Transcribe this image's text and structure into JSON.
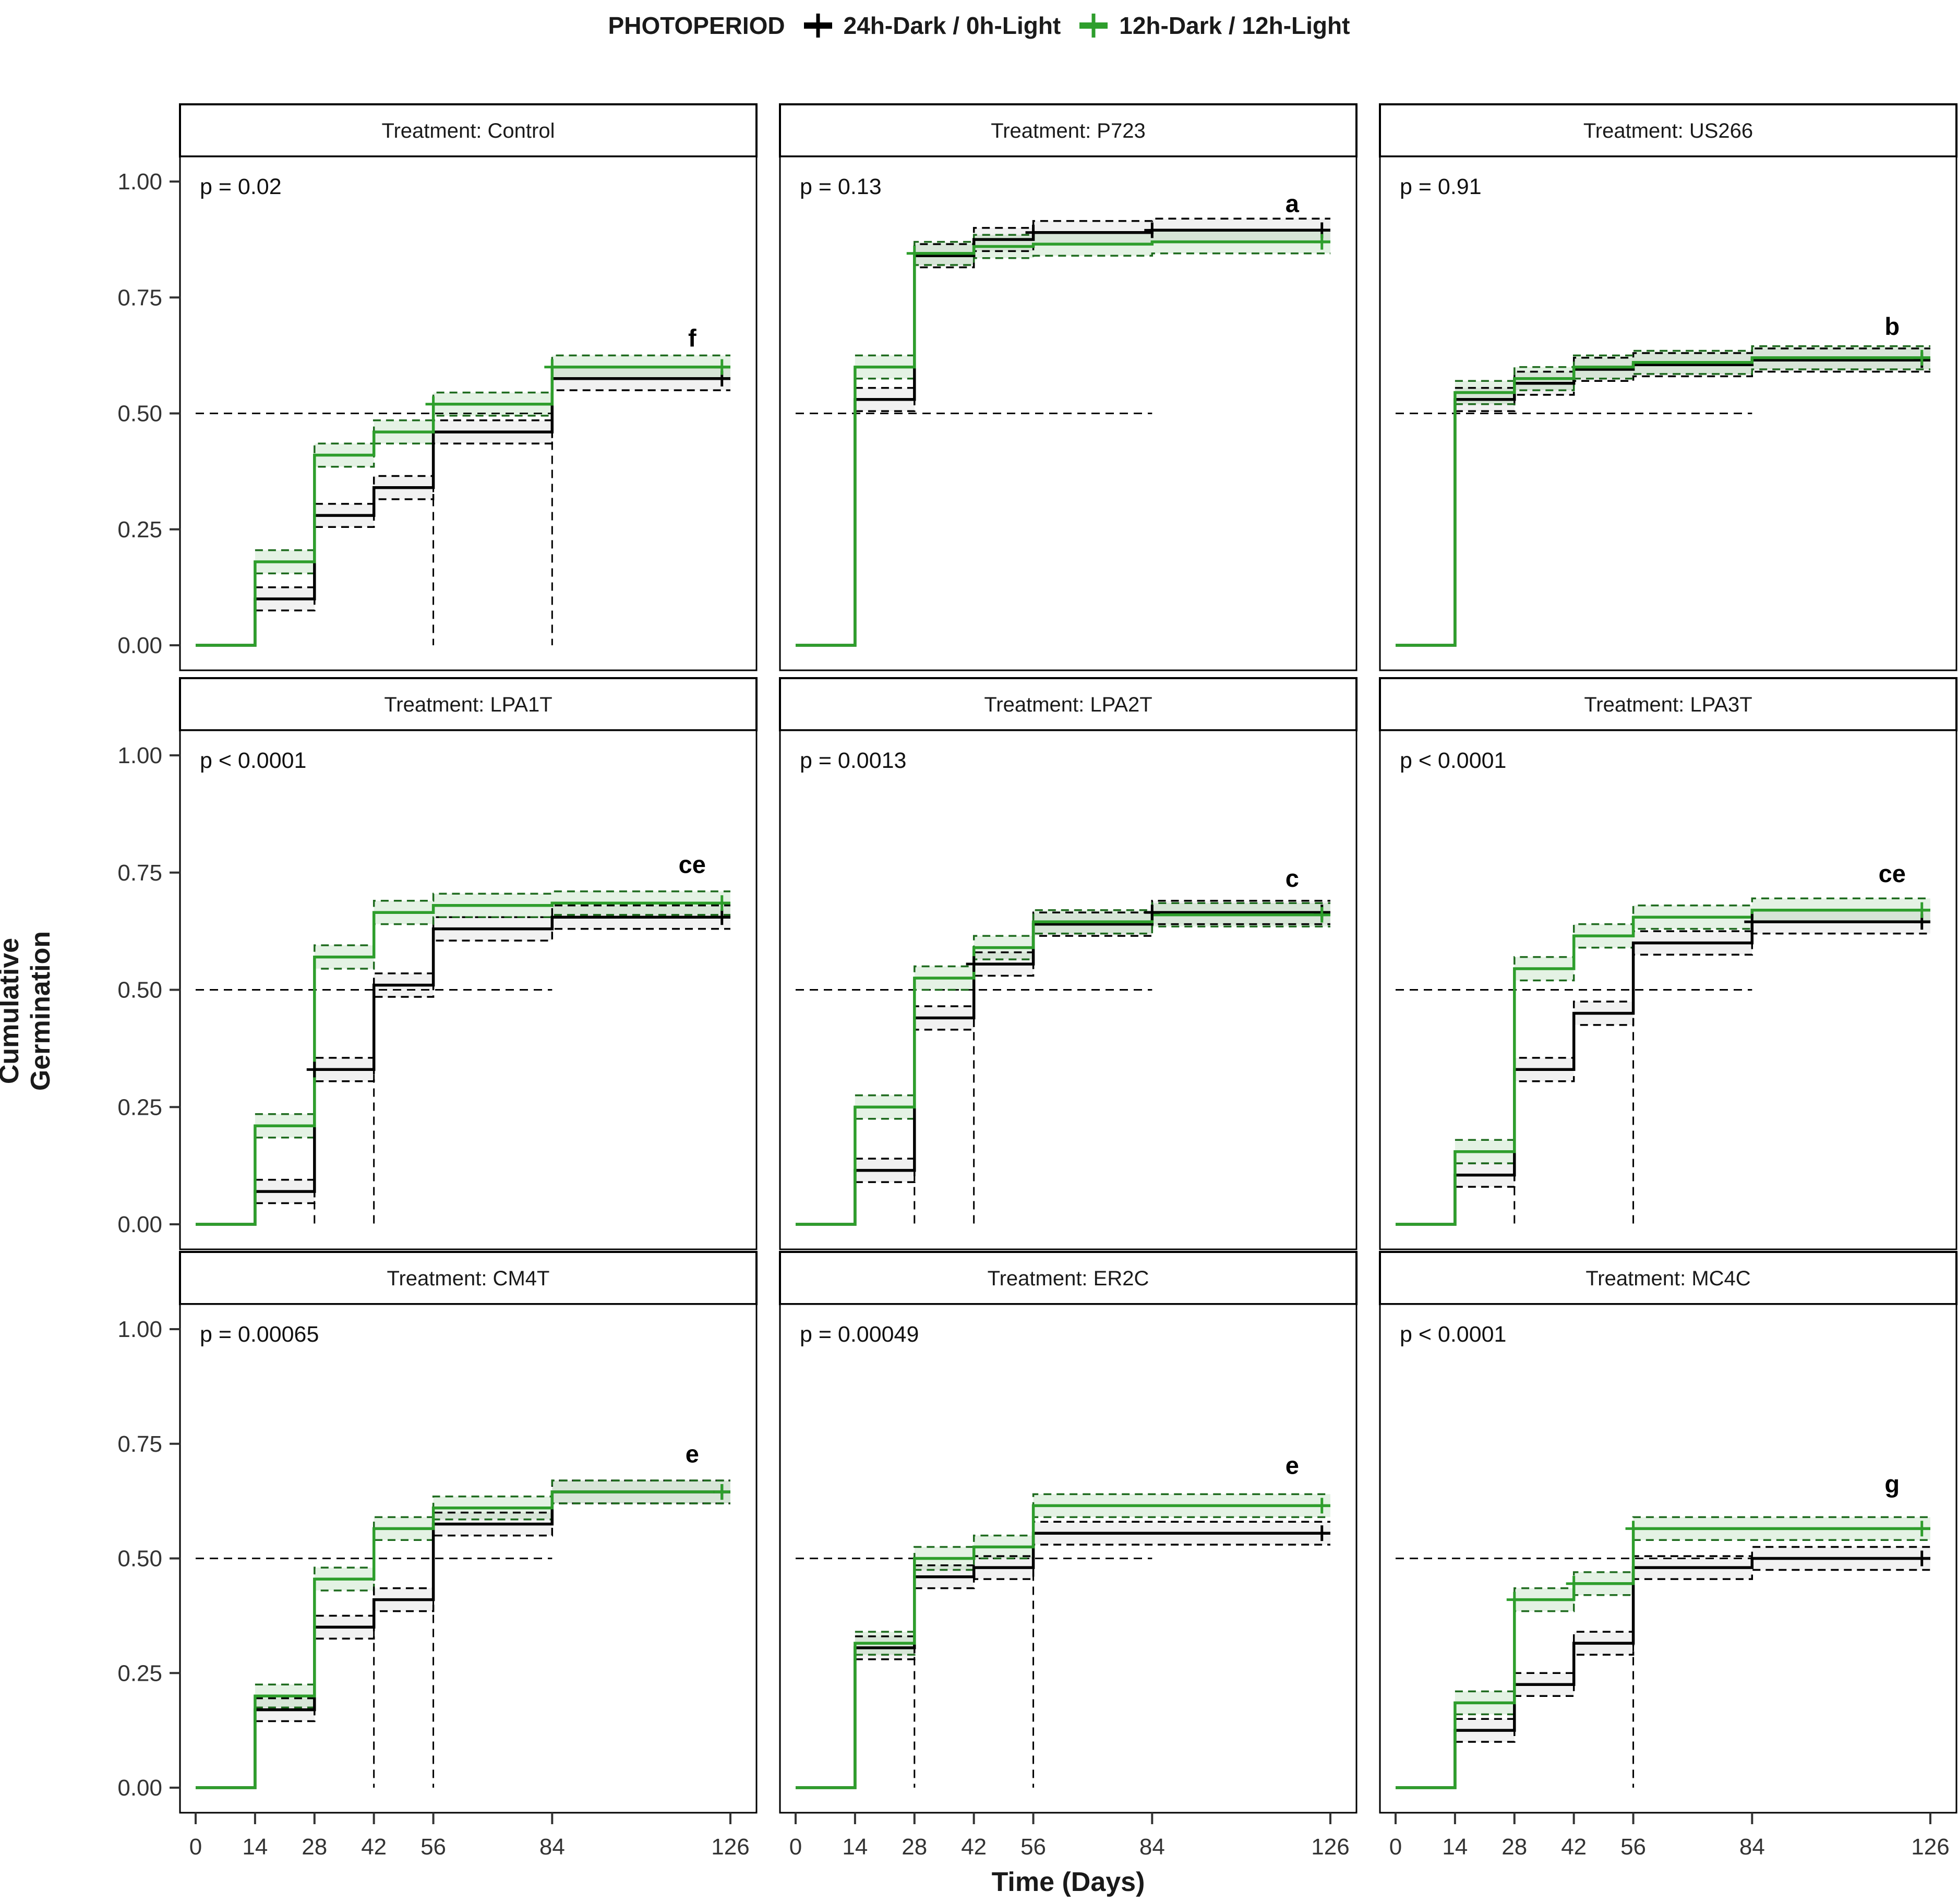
{
  "legend": {
    "title": "PHOTOPERIOD",
    "items": [
      {
        "label": "24h-Dark / 0h-Light",
        "color": "#000000"
      },
      {
        "label": "12h-Dark / 12h-Light",
        "color": "#2E9E2C"
      }
    ]
  },
  "axes": {
    "x_title": "Time (Days)",
    "y_title": "Cumulative Germination",
    "x_ticks": [
      0,
      14,
      28,
      42,
      56,
      84,
      126
    ],
    "y_tick_labels": [
      "1.00",
      "0.75",
      "0.50",
      "0.25",
      "0.00"
    ],
    "y_tick_values": [
      1.0,
      0.75,
      0.5,
      0.25,
      0.0
    ]
  },
  "chart_data": {
    "type": "line",
    "subtype": "kaplan-meier-cumulative-step",
    "title": "",
    "xlabel": "Time (Days)",
    "ylabel": "Cumulative Germination",
    "x_range": [
      0,
      126
    ],
    "y_range": [
      0,
      1
    ],
    "grid": false,
    "legend_position": "top",
    "step_times": [
      14,
      28,
      42,
      56,
      84
    ],
    "end_time": 126,
    "median_value": 0.5,
    "median_h_extent": 84,
    "ci_offset": 0.025,
    "series_names": [
      "24h-Dark / 0h-Light",
      "12h-Dark / 12h-Light"
    ],
    "colors": {
      "black": "#000000",
      "green": "#2E9E2C",
      "green_ci": "#1E6B1E"
    },
    "panels": [
      {
        "strip_label": "Treatment: Control",
        "p_label": "p = 0.02",
        "letter": "f",
        "letter_y": 0.66,
        "black": {
          "values": [
            0.1,
            0.28,
            0.34,
            0.46,
            0.575
          ],
          "median": 84,
          "censors": [
            [
              124,
              0.575
            ]
          ]
        },
        "green": {
          "values": [
            0.18,
            0.41,
            0.46,
            0.52,
            0.6
          ],
          "median": 56,
          "censors": [
            [
              56,
              0.52
            ],
            [
              84,
              0.6
            ],
            [
              124,
              0.6
            ]
          ]
        }
      },
      {
        "strip_label": "Treatment: P723",
        "p_label": "p = 0.13",
        "letter": "a",
        "letter_y": 0.95,
        "black": {
          "values": [
            0.53,
            0.84,
            0.875,
            0.89,
            0.895
          ],
          "median": 14,
          "censors": [
            [
              56,
              0.89
            ],
            [
              84,
              0.895
            ],
            [
              124,
              0.895
            ]
          ]
        },
        "green": {
          "values": [
            0.6,
            0.845,
            0.86,
            0.865,
            0.87
          ],
          "median": 14,
          "censors": [
            [
              28,
              0.845
            ],
            [
              124,
              0.87
            ]
          ]
        }
      },
      {
        "strip_label": "Treatment: US266",
        "p_label": "p = 0.91",
        "letter": "b",
        "letter_y": 0.685,
        "black": {
          "values": [
            0.53,
            0.565,
            0.595,
            0.605,
            0.615
          ],
          "median": 14,
          "censors": [
            [
              124,
              0.615
            ]
          ]
        },
        "green": {
          "values": [
            0.545,
            0.575,
            0.6,
            0.61,
            0.62
          ],
          "median": 14,
          "censors": [
            [
              124,
              0.62
            ]
          ]
        }
      },
      {
        "strip_label": "Treatment: LPA1T",
        "p_label": "p < 0.0001",
        "letter": "ce",
        "letter_y": 0.765,
        "black": {
          "values": [
            0.07,
            0.33,
            0.51,
            0.63,
            0.655
          ],
          "median": 42,
          "censors": [
            [
              28,
              0.33
            ],
            [
              124,
              0.655
            ]
          ]
        },
        "green": {
          "values": [
            0.21,
            0.57,
            0.665,
            0.68,
            0.685
          ],
          "median": 28,
          "censors": [
            [
              124,
              0.685
            ]
          ]
        }
      },
      {
        "strip_label": "Treatment: LPA2T",
        "p_label": "p = 0.0013",
        "letter": "c",
        "letter_y": 0.735,
        "black": {
          "values": [
            0.115,
            0.44,
            0.555,
            0.64,
            0.665
          ],
          "median": 42,
          "censors": [
            [
              42,
              0.555
            ],
            [
              84,
              0.665
            ],
            [
              124,
              0.665
            ]
          ]
        },
        "green": {
          "values": [
            0.25,
            0.525,
            0.59,
            0.645,
            0.66
          ],
          "median": 28,
          "censors": [
            [
              124,
              0.66
            ]
          ]
        }
      },
      {
        "strip_label": "Treatment: LPA3T",
        "p_label": "p < 0.0001",
        "letter": "ce",
        "letter_y": 0.745,
        "black": {
          "values": [
            0.105,
            0.33,
            0.45,
            0.6,
            0.645
          ],
          "median": 56,
          "censors": [
            [
              84,
              0.645
            ],
            [
              124,
              0.645
            ]
          ]
        },
        "green": {
          "values": [
            0.155,
            0.545,
            0.615,
            0.655,
            0.67
          ],
          "median": 28,
          "censors": [
            [
              124,
              0.67
            ]
          ]
        }
      },
      {
        "strip_label": "Treatment: CM4T",
        "p_label": "p = 0.00065",
        "letter": "e",
        "letter_y": 0.725,
        "black": {
          "values": [
            0.17,
            0.35,
            0.41,
            0.575,
            0.645
          ],
          "median": 56,
          "censors": [
            [
              124,
              0.645
            ]
          ]
        },
        "green": {
          "values": [
            0.2,
            0.455,
            0.565,
            0.61,
            0.645
          ],
          "median": 42,
          "censors": [
            [
              124,
              0.645
            ]
          ]
        }
      },
      {
        "strip_label": "Treatment: ER2C",
        "p_label": "p = 0.00049",
        "letter": "e",
        "letter_y": 0.7,
        "black": {
          "values": [
            0.305,
            0.46,
            0.48,
            0.555,
            0.555
          ],
          "median": 56,
          "censors": [
            [
              124,
              0.555
            ]
          ]
        },
        "green": {
          "values": [
            0.315,
            0.5,
            0.525,
            0.615,
            0.615
          ],
          "median": 28,
          "censors": [
            [
              124,
              0.615
            ]
          ]
        }
      },
      {
        "strip_label": "Treatment: MC4C",
        "p_label": "p < 0.0001",
        "letter": "g",
        "letter_y": 0.66,
        "black": {
          "values": [
            0.125,
            0.225,
            0.315,
            0.48,
            0.5
          ],
          "median": null,
          "censors": [
            [
              124,
              0.5
            ]
          ]
        },
        "green": {
          "values": [
            0.185,
            0.41,
            0.445,
            0.565,
            0.565
          ],
          "median": 56,
          "censors": [
            [
              28,
              0.41
            ],
            [
              42,
              0.445
            ],
            [
              56,
              0.565
            ],
            [
              124,
              0.565
            ]
          ]
        }
      }
    ]
  }
}
